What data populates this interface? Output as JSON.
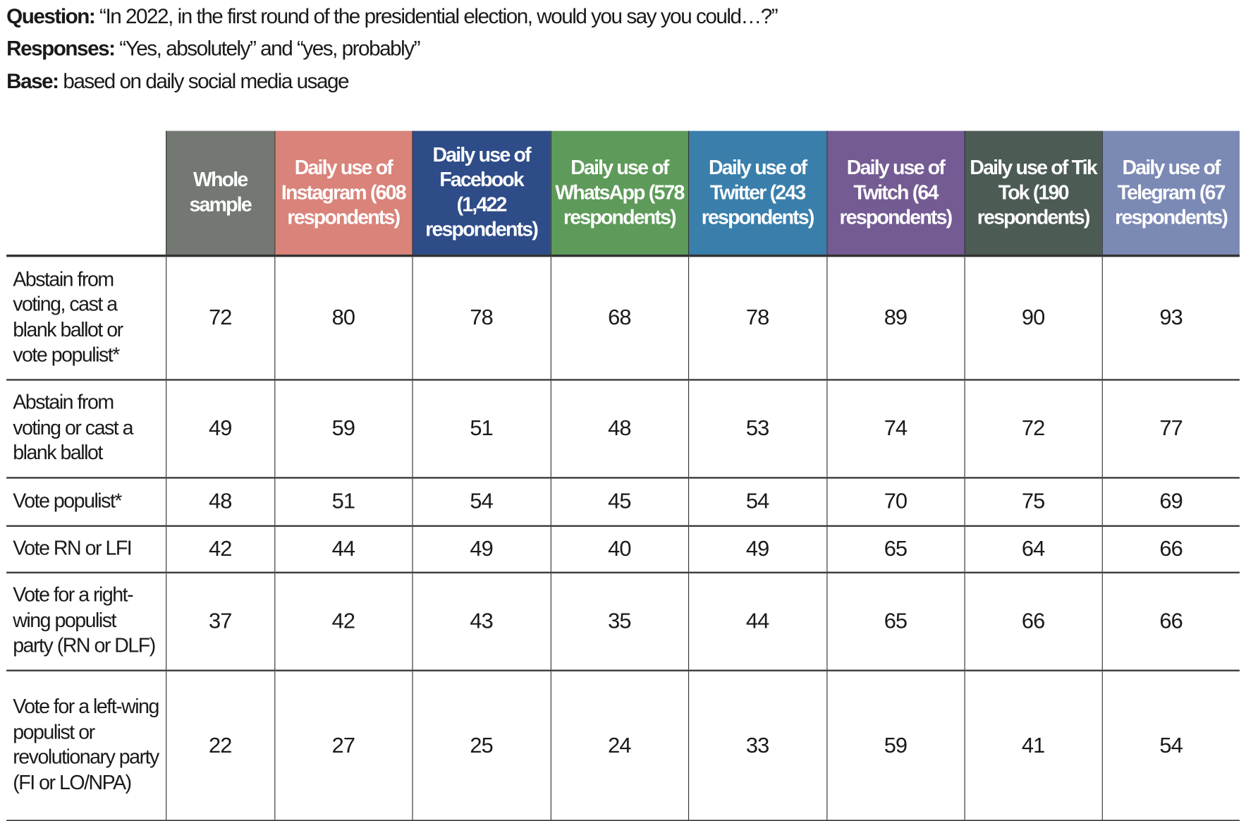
{
  "intro": {
    "question_label": "Question:",
    "question_text": " “In 2022, in the first round of the presidential election, would you say you could…?”",
    "responses_label": "Responses:",
    "responses_text": " “Yes, absolutely” and “yes, probably”",
    "base_label": "Base:",
    "base_text": " based on daily social media usage"
  },
  "columns": [
    {
      "label": "Whole sample",
      "color": "#737873"
    },
    {
      "label": "Daily use of Instagram (608 respondents)",
      "color": "#d9837a"
    },
    {
      "label": "Daily use of Facebook (1,422 respondents)",
      "color": "#2e4c88"
    },
    {
      "label": "Daily use of WhatsApp (578 respondents)",
      "color": "#5e9a5a"
    },
    {
      "label": "Daily use of Twitter (243 respondents)",
      "color": "#3a7fab"
    },
    {
      "label": "Daily use of Twitch (64 respondents)",
      "color": "#745b93"
    },
    {
      "label": "Daily use of Tik Tok (190 respondents)",
      "color": "#4d5b55"
    },
    {
      "label": "Daily use of Telegram (67 respondents)",
      "color": "#7b89b5"
    }
  ],
  "rows": [
    {
      "label": "Abstain from voting, cast a blank ballot or vote populist*",
      "values": [
        "72",
        "80",
        "78",
        "68",
        "78",
        "89",
        "90",
        "93"
      ]
    },
    {
      "label": "Abstain from voting or cast a blank ballot",
      "values": [
        "49",
        "59",
        "51",
        "48",
        "53",
        "74",
        "72",
        "77"
      ]
    },
    {
      "label": "Vote populist*",
      "values": [
        "48",
        "51",
        "54",
        "45",
        "54",
        "70",
        "75",
        "69"
      ]
    },
    {
      "label": "Vote RN or LFI",
      "values": [
        "42",
        "44",
        "49",
        "40",
        "49",
        "65",
        "64",
        "66"
      ]
    },
    {
      "label": "Vote for a right-wing populist party (RN or DLF)",
      "values": [
        "37",
        "42",
        "43",
        "35",
        "44",
        "65",
        "66",
        "66"
      ]
    },
    {
      "label": "Vote for a left-wing populist or revolutionary party (FI or LO/NPA)",
      "values": [
        "22",
        "27",
        "25",
        "24",
        "33",
        "59",
        "41",
        "54"
      ]
    }
  ]
}
